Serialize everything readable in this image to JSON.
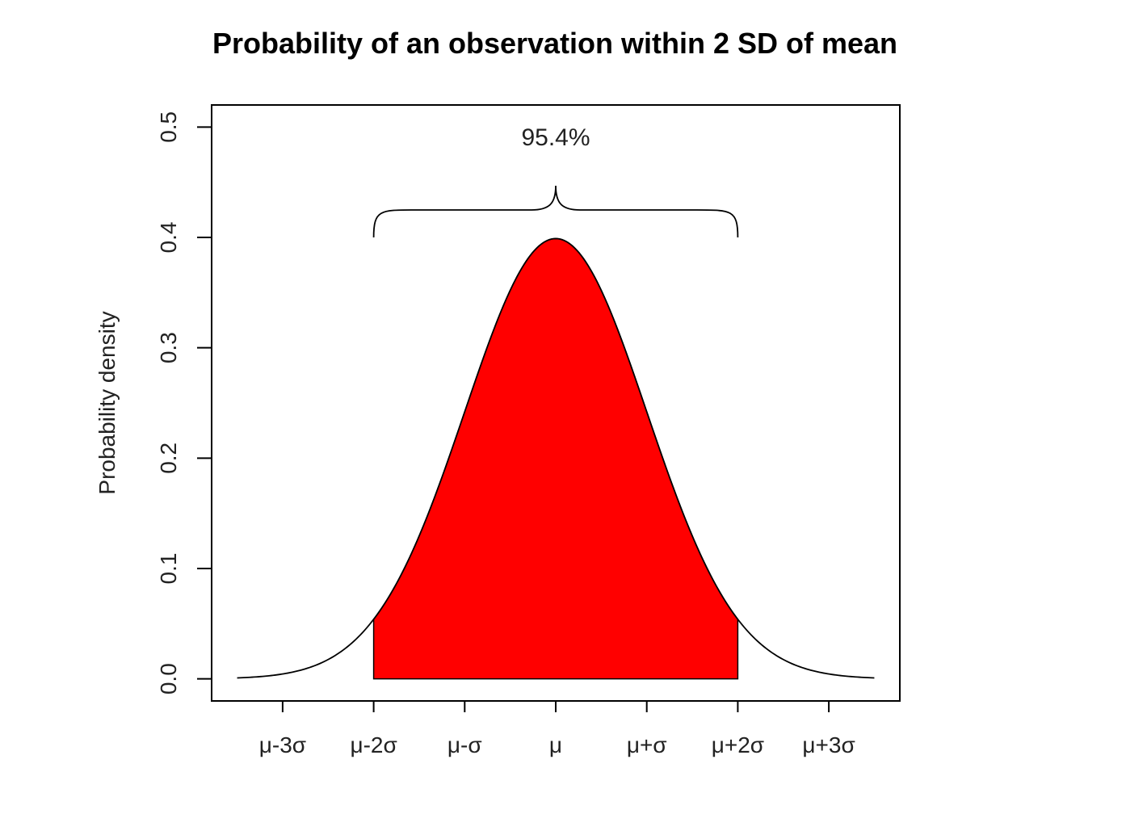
{
  "chart_data": {
    "type": "area",
    "title": "Probability of an observation within 2 SD of mean",
    "xlabel": "",
    "ylabel": "Probability density",
    "x_tick_labels": [
      "μ-3σ",
      "μ-2σ",
      "μ-σ",
      "μ",
      "μ+σ",
      "μ+2σ",
      "μ+3σ"
    ],
    "x_ticks": [
      -3,
      -2,
      -1,
      0,
      1,
      2,
      3
    ],
    "y_ticks": [
      0.0,
      0.1,
      0.2,
      0.3,
      0.4,
      0.5
    ],
    "y_tick_labels": [
      "0.0",
      "0.1",
      "0.2",
      "0.3",
      "0.4",
      "0.5"
    ],
    "xlim": [
      -3.5,
      3.5
    ],
    "ylim": [
      0,
      0.5
    ],
    "curve": {
      "distribution": "standard normal density",
      "x_range": [
        -3.5,
        3.5
      ]
    },
    "shaded_region": {
      "from": -2,
      "to": 2,
      "color": "#ff0000"
    },
    "annotation": {
      "text": "95.4%",
      "brace_from": -2,
      "brace_to": 2
    },
    "grid": false
  }
}
